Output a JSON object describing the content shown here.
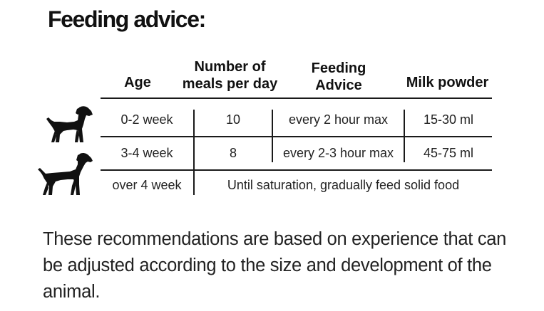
{
  "title": "Feeding advice:",
  "table": {
    "headers": {
      "age": "Age",
      "meals_line1": "Number of",
      "meals_line2": "meals per day",
      "advice_line1": "Feeding",
      "advice_line2": "Advice",
      "milk": "Milk powder"
    },
    "rows": [
      {
        "age": "0-2 week",
        "meals": "10",
        "advice": "every 2 hour max",
        "milk": "15-30 ml"
      },
      {
        "age": "3-4 week",
        "meals": "8",
        "advice": "every 2-3 hour max",
        "milk": "45-75 ml"
      },
      {
        "age": "over 4 week",
        "merged": "Until saturation, gradually feed solid food"
      }
    ]
  },
  "note": "These recommendations are based on experience that can be adjusted according to the size and development of the animal.",
  "icons": [
    "puppy-icon",
    "dog-icon"
  ],
  "colors": {
    "text": "#1a1a1a",
    "background": "#ffffff"
  }
}
